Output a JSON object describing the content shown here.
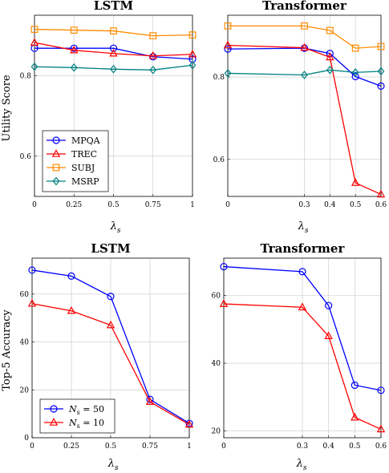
{
  "figure": {
    "row1_ylabel": "Utility Score",
    "row2_ylabel": "Top-5 Accuracy",
    "xlabel_main": "λ",
    "xlabel_sub": "s"
  },
  "chart_data": [
    {
      "type": "line",
      "title": "LSTM",
      "xlabel": "λs",
      "ylabel": "Utility Score",
      "xlim": [
        0,
        1
      ],
      "ylim": [
        0.5,
        0.95
      ],
      "xticks": [
        0,
        0.25,
        0.5,
        0.75,
        1
      ],
      "xtick_labels": [
        "0",
        "0.25",
        "0.5",
        "0.75",
        "1"
      ],
      "yticks": [
        0.6,
        0.8
      ],
      "ytick_labels": [
        "0.6",
        "0.8"
      ],
      "grid": true,
      "x": [
        0,
        0.25,
        0.5,
        0.75,
        1
      ],
      "series": [
        {
          "name": "MPQA",
          "color": "#0000ff",
          "marker": "circle",
          "values": [
            0.868,
            0.868,
            0.868,
            0.847,
            0.841
          ]
        },
        {
          "name": "TREC",
          "color": "#ff0000",
          "marker": "triangle",
          "values": [
            0.882,
            0.863,
            0.855,
            0.849,
            0.853
          ]
        },
        {
          "name": "SUBJ",
          "color": "#ff8c00",
          "marker": "square",
          "values": [
            0.915,
            0.913,
            0.911,
            0.899,
            0.901
          ]
        },
        {
          "name": "MSRP",
          "color": "#008080",
          "marker": "diamond",
          "values": [
            0.822,
            0.82,
            0.816,
            0.814,
            0.826
          ]
        }
      ],
      "legend": {
        "placement": "lower-left",
        "entries": [
          "MPQA",
          "TREC",
          "SUBJ",
          "MSRP"
        ]
      }
    },
    {
      "type": "line",
      "title": "Transformer",
      "xlabel": "λs",
      "xlim": [
        0,
        0.6
      ],
      "ylim": [
        0.51,
        0.95
      ],
      "xticks": [
        0,
        0.3,
        0.4,
        0.5,
        0.6
      ],
      "xtick_labels": [
        "0",
        "0.3",
        "0.4",
        "0.5",
        "0.6"
      ],
      "yticks": [
        0.6,
        0.8
      ],
      "ytick_labels": [
        "0.6",
        "0.8"
      ],
      "grid": true,
      "x": [
        0,
        0.3,
        0.4,
        0.5,
        0.6
      ],
      "series": [
        {
          "name": "MPQA",
          "color": "#0000ff",
          "marker": "circle",
          "values": [
            0.868,
            0.87,
            0.857,
            0.801,
            0.778
          ]
        },
        {
          "name": "TREC",
          "color": "#ff0000",
          "marker": "triangle",
          "values": [
            0.877,
            0.871,
            0.848,
            0.543,
            0.515
          ]
        },
        {
          "name": "SUBJ",
          "color": "#ff8c00",
          "marker": "square",
          "values": [
            0.924,
            0.924,
            0.913,
            0.87,
            0.874
          ]
        },
        {
          "name": "MSRP",
          "color": "#008080",
          "marker": "diamond",
          "values": [
            0.809,
            0.805,
            0.817,
            0.811,
            0.814
          ]
        }
      ]
    },
    {
      "type": "line",
      "title": "LSTM",
      "xlabel": "λs",
      "ylabel": "Top-5 Accuracy",
      "xlim": [
        0,
        1
      ],
      "ylim": [
        0,
        75
      ],
      "xticks": [
        0,
        0.25,
        0.5,
        0.75,
        1
      ],
      "xtick_labels": [
        "0",
        "0.25",
        "0.5",
        "0.75",
        "1"
      ],
      "yticks": [
        0,
        20,
        40,
        60
      ],
      "ytick_labels": [
        "0",
        "20",
        "40",
        "60"
      ],
      "grid": true,
      "x": [
        0,
        0.25,
        0.5,
        0.75,
        1
      ],
      "series": [
        {
          "name": "Ns = 50",
          "color": "#0000ff",
          "marker": "circle",
          "values": [
            70,
            67.5,
            59,
            16,
            6
          ]
        },
        {
          "name": "Ns = 10",
          "color": "#ff0000",
          "marker": "triangle",
          "values": [
            56,
            53,
            47,
            15,
            5.5
          ]
        }
      ],
      "legend": {
        "placement": "lower-left",
        "entries": [
          "Ns = 50",
          "Ns = 10"
        ]
      }
    },
    {
      "type": "line",
      "title": "Transformer",
      "xlabel": "λs",
      "xlim": [
        0,
        0.6
      ],
      "ylim": [
        18,
        71
      ],
      "xticks": [
        0,
        0.3,
        0.4,
        0.5,
        0.6
      ],
      "xtick_labels": [
        "0",
        "0.3",
        "0.4",
        "0.5",
        "0.6"
      ],
      "yticks": [
        20,
        40,
        60
      ],
      "ytick_labels": [
        "20",
        "40",
        "60"
      ],
      "grid": true,
      "x": [
        0,
        0.3,
        0.4,
        0.5,
        0.6
      ],
      "series": [
        {
          "name": "Ns = 50",
          "color": "#0000ff",
          "marker": "circle",
          "values": [
            68.5,
            67,
            57,
            33.5,
            32
          ]
        },
        {
          "name": "Ns = 10",
          "color": "#ff0000",
          "marker": "triangle",
          "values": [
            57.5,
            56.5,
            48,
            24,
            20.5
          ]
        }
      ]
    }
  ]
}
